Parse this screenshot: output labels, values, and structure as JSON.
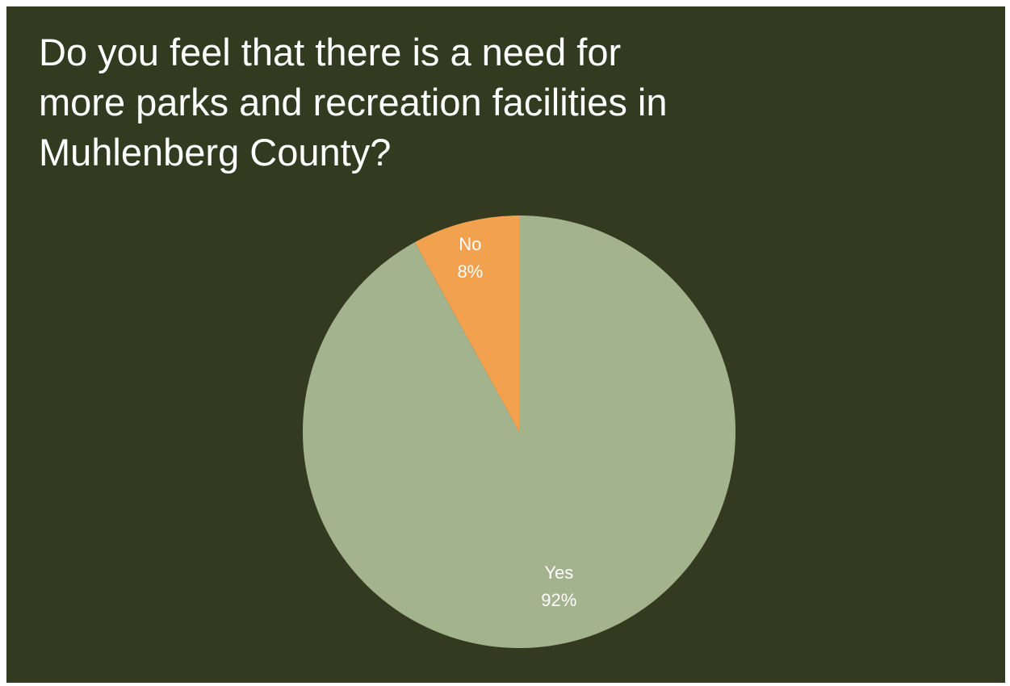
{
  "title_lines": [
    "Do you feel that there is a need for",
    "more parks and recreation facilities in",
    "Muhlenberg County?"
  ],
  "chart_data": {
    "type": "pie",
    "title": "Do you feel that there is a need for more parks and recreation facilities in Muhlenberg County?",
    "slices": [
      {
        "label": "Yes",
        "value": 92,
        "display": "92%",
        "color": "#a3b38d"
      },
      {
        "label": "No",
        "value": 8,
        "display": "8%",
        "color": "#f2a14e"
      }
    ],
    "start": "12 o'clock, No slice counter-clockwise",
    "legend": "none"
  }
}
